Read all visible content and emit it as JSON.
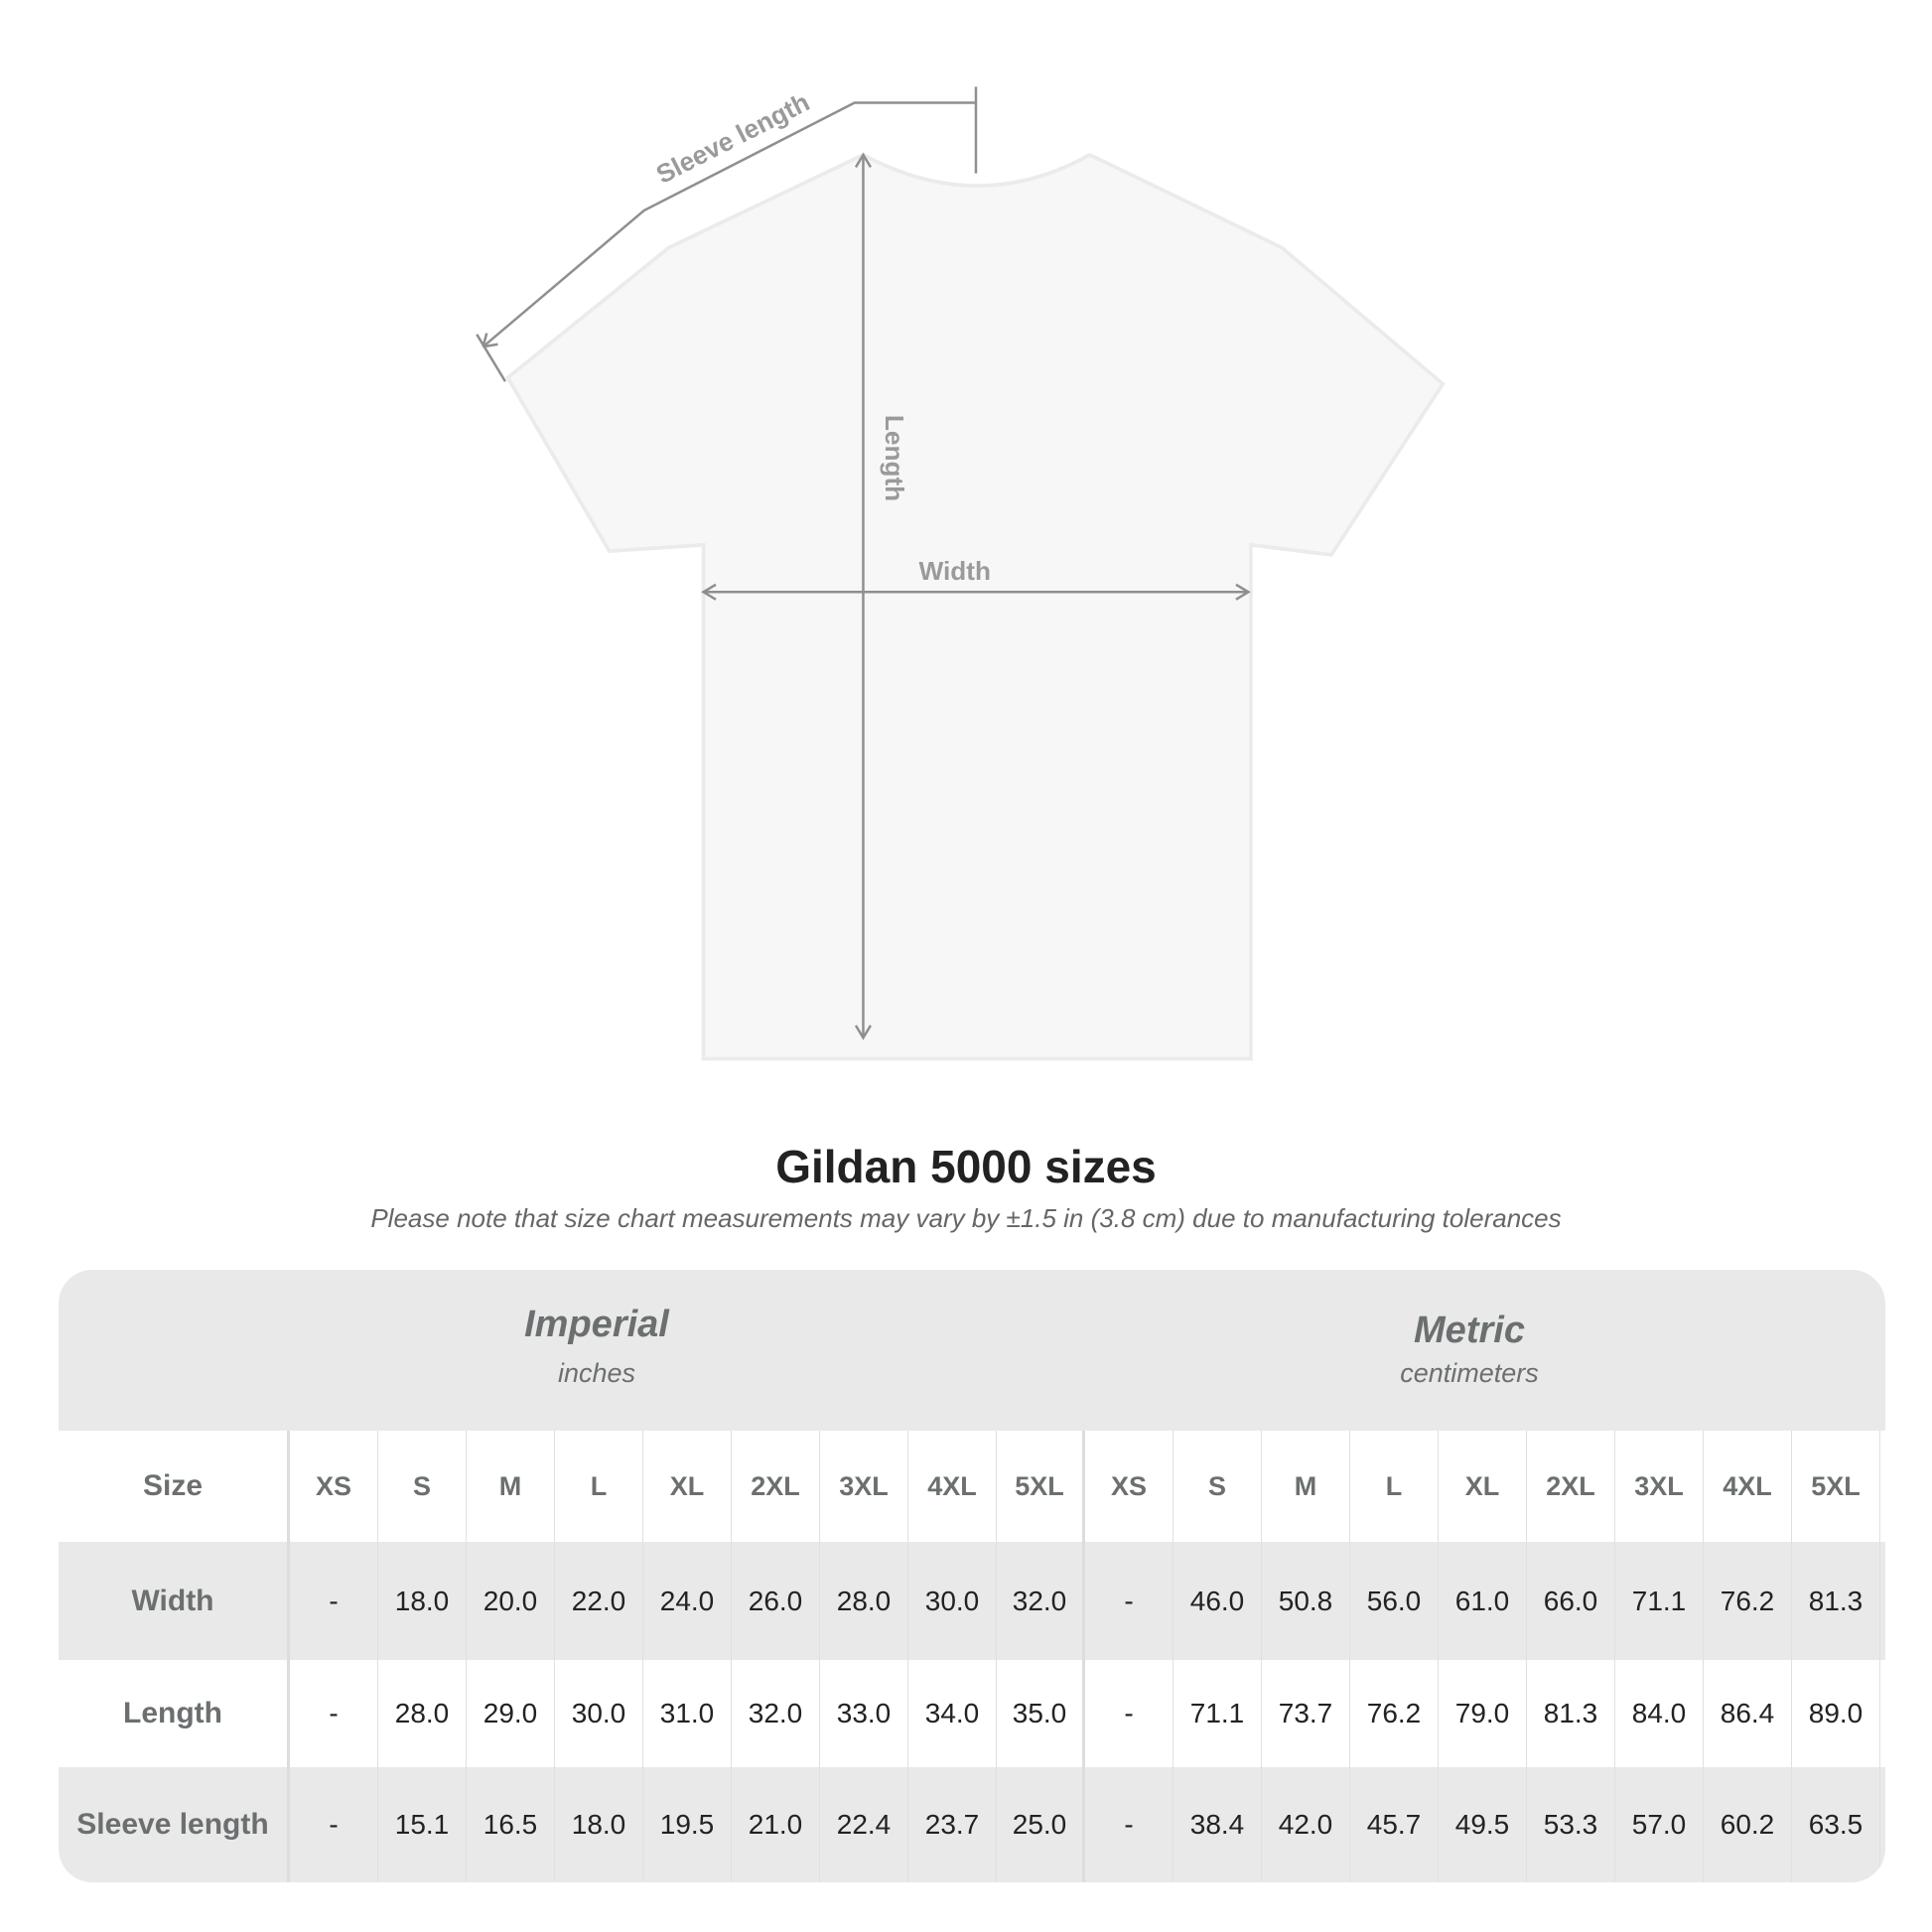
{
  "diagram": {
    "sleeve_label": "Sleeve length",
    "length_label": "Length",
    "width_label": "Width"
  },
  "title": "Gildan 5000 sizes",
  "note": "Please note that size chart measurements may vary by ±1.5 in (3.8 cm) due to manufacturing tolerances",
  "table": {
    "imperial": {
      "name": "Imperial",
      "unit": "inches"
    },
    "metric": {
      "name": "Metric",
      "unit": "centimeters"
    },
    "rows": [
      {
        "label": "Size",
        "cells": [
          "XS",
          "S",
          "M",
          "L",
          "XL",
          "2XL",
          "3XL",
          "4XL",
          "5XL",
          "XS",
          "S",
          "M",
          "L",
          "XL",
          "2XL",
          "3XL",
          "4XL",
          "5XL"
        ]
      },
      {
        "label": "Width",
        "cells": [
          "-",
          "18.0",
          "20.0",
          "22.0",
          "24.0",
          "26.0",
          "28.0",
          "30.0",
          "32.0",
          "-",
          "46.0",
          "50.8",
          "56.0",
          "61.0",
          "66.0",
          "71.1",
          "76.2",
          "81.3"
        ]
      },
      {
        "label": "Length",
        "cells": [
          "-",
          "28.0",
          "29.0",
          "30.0",
          "31.0",
          "32.0",
          "33.0",
          "34.0",
          "35.0",
          "-",
          "71.1",
          "73.7",
          "76.2",
          "79.0",
          "81.3",
          "84.0",
          "86.4",
          "89.0"
        ]
      },
      {
        "label": "Sleeve length",
        "cells": [
          "-",
          "15.1",
          "16.5",
          "18.0",
          "19.5",
          "21.0",
          "22.4",
          "23.7",
          "25.0",
          "-",
          "38.4",
          "42.0",
          "45.7",
          "49.5",
          "53.3",
          "57.0",
          "60.2",
          "63.5"
        ]
      }
    ]
  }
}
